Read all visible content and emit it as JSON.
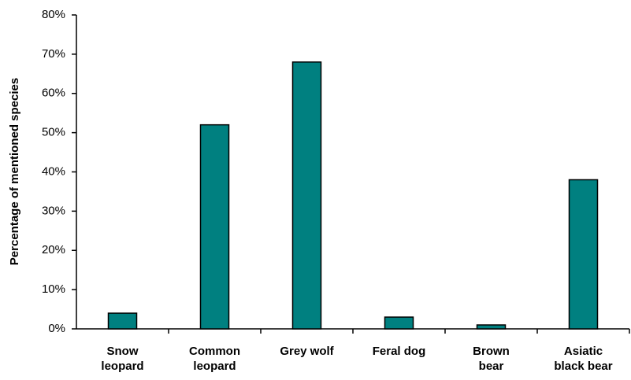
{
  "chart_data": {
    "type": "bar",
    "y_label": "Percentage of mentioned species",
    "categories": [
      "Snow leopard",
      "Common leopard",
      "Grey wolf",
      "Feral dog",
      "Brown bear",
      "Asiatic black bear"
    ],
    "values": [
      4,
      52,
      68,
      3,
      1,
      38
    ],
    "color": "#008080",
    "ylim": [
      0,
      80
    ],
    "yticks": [
      {
        "value": 0,
        "label": "0%"
      },
      {
        "value": 10,
        "label": "10%"
      },
      {
        "value": 20,
        "label": "20%"
      },
      {
        "value": 30,
        "label": "30%"
      },
      {
        "value": 40,
        "label": "40%"
      },
      {
        "value": 50,
        "label": "50%"
      },
      {
        "value": 60,
        "label": "60%"
      },
      {
        "value": 70,
        "label": "70%"
      },
      {
        "value": 80,
        "label": "80%"
      }
    ],
    "grid": false
  }
}
